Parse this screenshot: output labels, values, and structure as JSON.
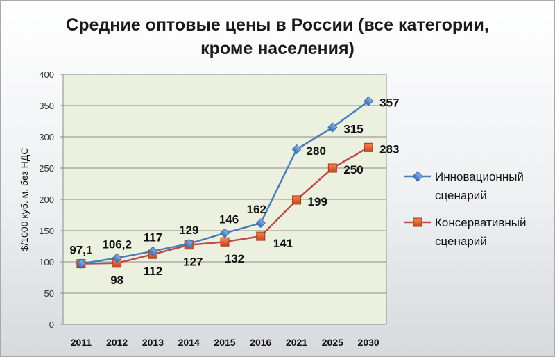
{
  "chart_data": {
    "type": "line",
    "title_line1": "Средние оптовые цены в России (все категории,",
    "title_line2": "кроме населения)",
    "ylabel": "$/1000 куб. м. без НДС",
    "xlabel": "",
    "ylim": [
      0,
      400
    ],
    "yticks": [
      "0",
      "50",
      "100",
      "150",
      "200",
      "250",
      "300",
      "350",
      "400"
    ],
    "categories": [
      "2011",
      "2012",
      "2013",
      "2014",
      "2015",
      "2016",
      "2021",
      "2025",
      "2030"
    ],
    "grid": "horizontal",
    "legend_position": "right",
    "series": [
      {
        "name": "Инновационный сценарий",
        "legend_line1": "Инновационный",
        "legend_line2": "сценарий",
        "color": "#4a7ebb",
        "marker": "diamond",
        "values": [
          97.1,
          106.2,
          117,
          129,
          146,
          162,
          280,
          315,
          357
        ],
        "labels": [
          "97,1",
          "106,2",
          "117",
          "129",
          "146",
          "162",
          "280",
          "315",
          "357"
        ]
      },
      {
        "name": "Консервативный сценарий",
        "legend_line1": "Консервативный",
        "legend_line2": "сценарий",
        "color": "#be4b48",
        "marker": "square",
        "values": [
          97.1,
          98,
          112,
          127,
          132,
          141,
          199,
          250,
          283
        ],
        "labels": [
          "",
          "98",
          "112",
          "127",
          "132",
          "141",
          "199",
          "250",
          "283"
        ]
      }
    ]
  }
}
